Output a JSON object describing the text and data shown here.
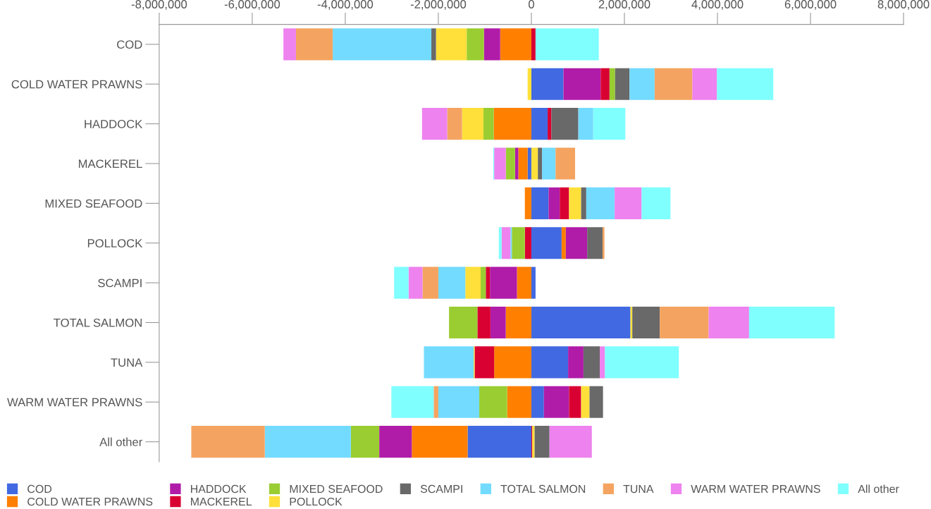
{
  "chart_data": {
    "type": "bar",
    "orientation": "horizontal",
    "stacked": true,
    "categories": [
      "COD",
      "COLD WATER PRAWNS",
      "HADDOCK",
      "MACKEREL",
      "MIXED SEAFOOD",
      "POLLOCK",
      "SCAMPI",
      "TOTAL SALMON",
      "TUNA",
      "WARM WATER PRAWNS",
      "All other"
    ],
    "series": [
      {
        "name": "COD",
        "color": "#4169e1",
        "values": [
          null,
          690000,
          350000,
          -80000,
          370000,
          650000,
          90000,
          2130000,
          790000,
          270000,
          -1370000
        ]
      },
      {
        "name": "COLD WATER PRAWNS",
        "color": "#ff8000",
        "values": [
          -670000,
          null,
          -810000,
          -200000,
          -140000,
          90000,
          -310000,
          -550000,
          -800000,
          -520000,
          -1200000
        ]
      },
      {
        "name": "HADDOCK",
        "color": "#b01ca8",
        "values": [
          -350000,
          800000,
          null,
          -70000,
          240000,
          460000,
          -580000,
          -330000,
          330000,
          540000,
          -700000
        ]
      },
      {
        "name": "MACKEREL",
        "color": "#d90032",
        "values": [
          90000,
          190000,
          80000,
          null,
          200000,
          -140000,
          -90000,
          -280000,
          -420000,
          260000,
          20000
        ]
      },
      {
        "name": "MIXED SEAFOOD",
        "color": "#9acd32",
        "values": [
          -370000,
          120000,
          -220000,
          -200000,
          null,
          -280000,
          -110000,
          -610000,
          null,
          -600000,
          -610000
        ]
      },
      {
        "name": "POLLOCK",
        "color": "#ffe03a",
        "values": [
          -660000,
          -80000,
          -460000,
          140000,
          260000,
          null,
          -330000,
          40000,
          -20000,
          180000,
          50000
        ]
      },
      {
        "name": "SCAMPI",
        "color": "#696969",
        "values": [
          -100000,
          310000,
          580000,
          90000,
          110000,
          330000,
          null,
          590000,
          350000,
          290000,
          320000
        ]
      },
      {
        "name": "TOTAL SALMON",
        "color": "#73dbff",
        "values": [
          -2120000,
          540000,
          320000,
          290000,
          610000,
          -30000,
          -580000,
          null,
          -1070000,
          -880000,
          -1850000
        ]
      },
      {
        "name": "TUNA",
        "color": "#f4a460",
        "values": [
          -790000,
          810000,
          -320000,
          420000,
          null,
          40000,
          -340000,
          1050000,
          null,
          -100000,
          -1580000
        ]
      },
      {
        "name": "WARM WATER PRAWNS",
        "color": "#ee82ee",
        "values": [
          -270000,
          530000,
          -540000,
          -250000,
          580000,
          -190000,
          -300000,
          870000,
          110000,
          null,
          910000
        ]
      },
      {
        "name": "All other",
        "color": "#80ffff",
        "values": [
          1360000,
          1210000,
          690000,
          -20000,
          620000,
          -60000,
          -310000,
          1840000,
          1590000,
          -910000,
          null
        ]
      }
    ],
    "xlim": [
      -8000000,
      8000000
    ],
    "xticks": [
      {
        "value": -8000000,
        "label": "-8,000,000"
      },
      {
        "value": -6000000,
        "label": "-6,000,000"
      },
      {
        "value": -4000000,
        "label": "-4,000,000"
      },
      {
        "value": -2000000,
        "label": "-2,000,000"
      },
      0,
      {
        "value": 2000000,
        "label": "2,000,000"
      },
      {
        "value": 4000000,
        "label": "4,000,000"
      },
      {
        "value": 6000000,
        "label": "6,000,000"
      },
      {
        "value": 8000000,
        "label": "8,000,000"
      }
    ],
    "grid": false,
    "legend": "bottom"
  }
}
